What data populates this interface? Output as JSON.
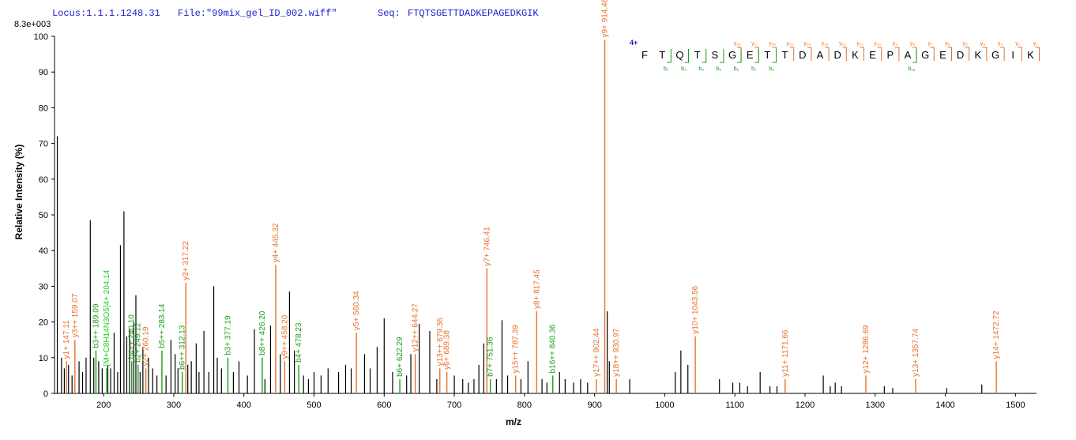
{
  "header": {
    "locus_label": "Locus:1.1.1.1248.31",
    "file_label": "File:\"99mix_gel_ID_002.wiff\"",
    "seq_label": "Seq:",
    "seq_value": "FTQTSGETTDADKEPAGEDKGIK",
    "max_intensity": "8.3e+003"
  },
  "colors": {
    "y_ion": "#e8702a",
    "b_ion": "#18a018",
    "other_ion": "#22cc22",
    "unassigned": "#000000",
    "axis": "#000000",
    "header_text": "#1c1ccc",
    "charge_text": "#1c1ccc"
  },
  "sequence_panel": {
    "charge": "4+",
    "residues": [
      "F",
      "T",
      "Q",
      "T",
      "S",
      "G",
      "E",
      "T",
      "T",
      "D",
      "A",
      "D",
      "K",
      "E",
      "P",
      "A",
      "G",
      "E",
      "D",
      "K",
      "G",
      "I",
      "K"
    ],
    "y_tags": [
      {
        "after": 6,
        "label": "y₁₈"
      },
      {
        "after": 7,
        "label": "y₁₇"
      },
      {
        "after": 8,
        "label": "y₁₆"
      },
      {
        "after": 9,
        "label": "y₁₅"
      },
      {
        "after": 10,
        "label": "y₁₄"
      },
      {
        "after": 11,
        "label": "y₁₃"
      },
      {
        "after": 12,
        "label": "y₁₂"
      },
      {
        "after": 13,
        "label": "y₁₁"
      },
      {
        "after": 14,
        "label": "y₁₀"
      },
      {
        "after": 15,
        "label": "y₉"
      },
      {
        "after": 16,
        "label": "y₈"
      },
      {
        "after": 17,
        "label": "y₇"
      },
      {
        "after": 18,
        "label": "y₆"
      },
      {
        "after": 19,
        "label": "y₅"
      },
      {
        "after": 20,
        "label": "y₄"
      },
      {
        "after": 21,
        "label": "y₃"
      },
      {
        "after": 22,
        "label": "y₂"
      },
      {
        "after": 23,
        "label": "y₁"
      }
    ],
    "b_tags": [
      {
        "after": 2,
        "label": "b₂"
      },
      {
        "after": 3,
        "label": "b₃"
      },
      {
        "after": 4,
        "label": "b₄"
      },
      {
        "after": 5,
        "label": "b₅"
      },
      {
        "after": 6,
        "label": "b₆"
      },
      {
        "after": 7,
        "label": "b₇"
      },
      {
        "after": 8,
        "label": "b₈"
      },
      {
        "after": 16,
        "label": "b₁₆"
      }
    ]
  },
  "chart_data": {
    "type": "bar",
    "xlabel": "m/z",
    "ylabel": "Relative  Intensity (%)",
    "xlim": [
      130,
      1530
    ],
    "ylim": [
      0,
      100
    ],
    "x_ticks": [
      200,
      300,
      400,
      500,
      600,
      700,
      800,
      900,
      1000,
      1100,
      1200,
      1300,
      1400,
      1500
    ],
    "y_ticks": [
      0,
      10,
      20,
      30,
      40,
      50,
      60,
      70,
      80,
      90,
      100
    ],
    "assigned_peaks": [
      {
        "label": "y1+ 147.11",
        "mz": 147.11,
        "intensity": 9,
        "ion": "y"
      },
      {
        "label": "y3++ 159.07",
        "mz": 159.07,
        "intensity": 15,
        "ion": "y"
      },
      {
        "label": "b3++ 189.09",
        "mz": 189.09,
        "intensity": 12,
        "ion": "b"
      },
      {
        "label": "[M+C8H14N3O5]4+ 204.14",
        "mz": 204.14,
        "intensity": 7,
        "ion": "other"
      },
      {
        "label": "b4++ 240.10",
        "mz": 240.1,
        "intensity": 9,
        "ion": "b"
      },
      {
        "label": "b2+ 249.12",
        "mz": 249.12,
        "intensity": 8,
        "ion": "b"
      },
      {
        "label": "y2+ 260.19",
        "mz": 260.19,
        "intensity": 7,
        "ion": "y"
      },
      {
        "label": "b5++ 283.14",
        "mz": 283.14,
        "intensity": 12,
        "ion": "b"
      },
      {
        "label": "b6++ 312.13",
        "mz": 312.13,
        "intensity": 6,
        "ion": "b"
      },
      {
        "label": "y3+ 317.22",
        "mz": 317.22,
        "intensity": 31,
        "ion": "y"
      },
      {
        "label": "b3+ 377.19",
        "mz": 377.19,
        "intensity": 10,
        "ion": "b"
      },
      {
        "label": "b8++ 426.20",
        "mz": 426.2,
        "intensity": 10,
        "ion": "b"
      },
      {
        "label": "y4+ 445.32",
        "mz": 445.32,
        "intensity": 36,
        "ion": "y"
      },
      {
        "label": "y9++ 458.20",
        "mz": 458.2,
        "intensity": 9,
        "ion": "y"
      },
      {
        "label": "b4+ 478.23",
        "mz": 478.23,
        "intensity": 8,
        "ion": "b"
      },
      {
        "label": "y5+ 560.34",
        "mz": 560.34,
        "intensity": 17,
        "ion": "y"
      },
      {
        "label": "b6+ 622.29",
        "mz": 622.29,
        "intensity": 4,
        "ion": "b"
      },
      {
        "label": "y12++ 644.27",
        "mz": 644.27,
        "intensity": 11,
        "ion": "y"
      },
      {
        "label": "y13++ 679.36",
        "mz": 679.36,
        "intensity": 7,
        "ion": "y"
      },
      {
        "label": "y6+ 689.38",
        "mz": 689.38,
        "intensity": 6,
        "ion": "y"
      },
      {
        "label": "y7+ 746.41",
        "mz": 746.41,
        "intensity": 35,
        "ion": "y"
      },
      {
        "label": "b7+ 751.36",
        "mz": 751.36,
        "intensity": 4,
        "ion": "b"
      },
      {
        "label": "y15++ 787.39",
        "mz": 787.39,
        "intensity": 5,
        "ion": "y"
      },
      {
        "label": "y8+ 817.45",
        "mz": 817.45,
        "intensity": 23,
        "ion": "y"
      },
      {
        "label": "b16++ 840.36",
        "mz": 840.36,
        "intensity": 5,
        "ion": "b"
      },
      {
        "label": "y17++ 902.44",
        "mz": 902.44,
        "intensity": 4,
        "ion": "y"
      },
      {
        "label": "y9+ 914.46",
        "mz": 914.46,
        "intensity": 99,
        "ion": "y"
      },
      {
        "label": "y18++ 930.97",
        "mz": 930.97,
        "intensity": 4,
        "ion": "y"
      },
      {
        "label": "y10+ 1043.56",
        "mz": 1043.56,
        "intensity": 16,
        "ion": "y"
      },
      {
        "label": "y11+ 1171.66",
        "mz": 1171.66,
        "intensity": 4,
        "ion": "y"
      },
      {
        "label": "y12+ 1286.69",
        "mz": 1286.69,
        "intensity": 5,
        "ion": "y"
      },
      {
        "label": "y13+ 1357.74",
        "mz": 1357.74,
        "intensity": 4,
        "ion": "y"
      },
      {
        "label": "y14+ 1472.72",
        "mz": 1472.72,
        "intensity": 9,
        "ion": "y"
      }
    ],
    "unassigned_peaks": [
      [
        134,
        72
      ],
      [
        140,
        10
      ],
      [
        144,
        7
      ],
      [
        150,
        8
      ],
      [
        155,
        5
      ],
      [
        165,
        9
      ],
      [
        170,
        6
      ],
      [
        175,
        10
      ],
      [
        181,
        48.5
      ],
      [
        186,
        10
      ],
      [
        193,
        9
      ],
      [
        198,
        7
      ],
      [
        206,
        8
      ],
      [
        210,
        7
      ],
      [
        215,
        17
      ],
      [
        220,
        6
      ],
      [
        224,
        41.5
      ],
      [
        229,
        51
      ],
      [
        233,
        16
      ],
      [
        237,
        18
      ],
      [
        243,
        20
      ],
      [
        246,
        27.5
      ],
      [
        252,
        6
      ],
      [
        256,
        13
      ],
      [
        264,
        10
      ],
      [
        270,
        7
      ],
      [
        276,
        5
      ],
      [
        289,
        5
      ],
      [
        296,
        15
      ],
      [
        302,
        11
      ],
      [
        306,
        7
      ],
      [
        320,
        8
      ],
      [
        325,
        9
      ],
      [
        332,
        14
      ],
      [
        336,
        6
      ],
      [
        343,
        17.5
      ],
      [
        350,
        6
      ],
      [
        357,
        30
      ],
      [
        362,
        10
      ],
      [
        368,
        7
      ],
      [
        385,
        6
      ],
      [
        393,
        9
      ],
      [
        405,
        5
      ],
      [
        415,
        18
      ],
      [
        430,
        4
      ],
      [
        438,
        19
      ],
      [
        452,
        11
      ],
      [
        465,
        28.5
      ],
      [
        472,
        12
      ],
      [
        485,
        5
      ],
      [
        492,
        4
      ],
      [
        500,
        6
      ],
      [
        510,
        5
      ],
      [
        520,
        7
      ],
      [
        535,
        6
      ],
      [
        545,
        8
      ],
      [
        553,
        7
      ],
      [
        572,
        11
      ],
      [
        580,
        7
      ],
      [
        590,
        13
      ],
      [
        600,
        21
      ],
      [
        612,
        6
      ],
      [
        632,
        5
      ],
      [
        638,
        11
      ],
      [
        650,
        19.5
      ],
      [
        665,
        17.5
      ],
      [
        675,
        4
      ],
      [
        700,
        5
      ],
      [
        712,
        4
      ],
      [
        720,
        3
      ],
      [
        728,
        4
      ],
      [
        735,
        8
      ],
      [
        742,
        14
      ],
      [
        760,
        4
      ],
      [
        768,
        20.5
      ],
      [
        776,
        5
      ],
      [
        795,
        4
      ],
      [
        805,
        9
      ],
      [
        825,
        4
      ],
      [
        832,
        3
      ],
      [
        850,
        6
      ],
      [
        858,
        4
      ],
      [
        870,
        3
      ],
      [
        880,
        4
      ],
      [
        890,
        3
      ],
      [
        918,
        23
      ],
      [
        921,
        9
      ],
      [
        950,
        4
      ],
      [
        1015,
        6
      ],
      [
        1023,
        12
      ],
      [
        1033,
        8
      ],
      [
        1078,
        4
      ],
      [
        1097,
        3
      ],
      [
        1107,
        3
      ],
      [
        1118,
        2
      ],
      [
        1136,
        6
      ],
      [
        1150,
        2
      ],
      [
        1160,
        2
      ],
      [
        1226,
        5
      ],
      [
        1236,
        2
      ],
      [
        1243,
        3
      ],
      [
        1252,
        2
      ],
      [
        1313,
        2
      ],
      [
        1325,
        1.5
      ],
      [
        1402,
        1.5
      ],
      [
        1452,
        2.5
      ]
    ]
  }
}
